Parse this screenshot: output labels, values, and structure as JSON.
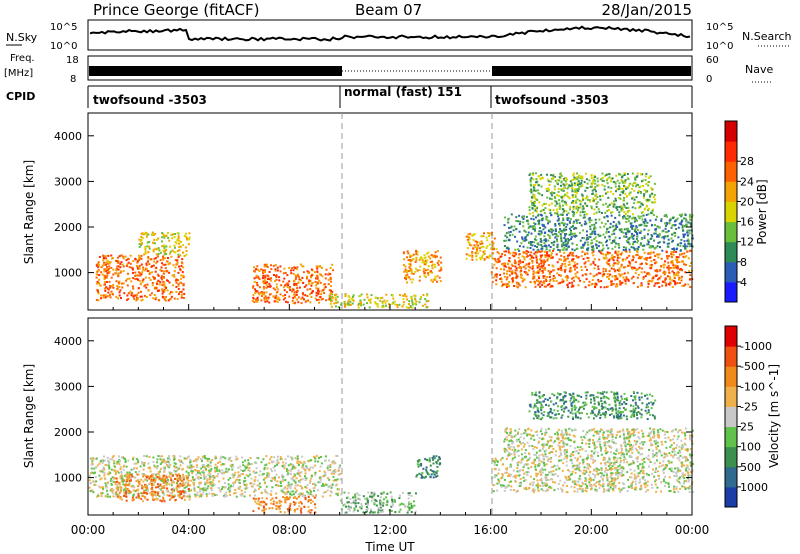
{
  "header": {
    "station": "Prince George (fitACF)",
    "beam": "Beam 07",
    "date": "28/Jan/2015"
  },
  "strip_labels": {
    "nsky": "N.Sky",
    "nsearch": "N.Search",
    "nsky_ticks": [
      "10^5",
      "10^0"
    ],
    "nsky_right_ticks": [
      "10^5",
      "10^0"
    ],
    "freq_label": "Freq.",
    "freq_unit": "[MHz]",
    "freq_ticks": [
      "18",
      "8"
    ],
    "nave_label": "Nave",
    "nave_ticks": [
      "60",
      "0"
    ],
    "cpid_label": "CPID"
  },
  "cpid_segments": [
    {
      "label": "twofsound -3503",
      "start": 0,
      "end": 10
    },
    {
      "label": "normal (fast) 151",
      "start": 10,
      "end": 16
    },
    {
      "label": "twofsound -3503",
      "start": 16,
      "end": 24
    }
  ],
  "chart_data": [
    {
      "type": "heatmap",
      "title": "",
      "xlabel": "",
      "ylabel": "Slant Range [km]",
      "xlim": [
        0,
        24
      ],
      "ylim": [
        180,
        4500
      ],
      "yticks": [
        1000,
        2000,
        3000,
        4000
      ],
      "colorbar": {
        "label": "Power [dB]",
        "ticks": [
          "4",
          "8",
          "12",
          "16",
          "20",
          "24",
          "28"
        ],
        "colors": [
          "#1a1aff",
          "#2b5db8",
          "#2e8b57",
          "#6abf3a",
          "#d9d400",
          "#f5a300",
          "#ff6000",
          "#ff2a00",
          "#d40000"
        ]
      },
      "echo_regions": [
        {
          "t0": 0.3,
          "t1": 3.8,
          "r0": 400,
          "r1": 1400,
          "level": 6
        },
        {
          "t0": 2.0,
          "t1": 4.0,
          "r0": 1400,
          "r1": 1900,
          "level": 4
        },
        {
          "t0": 6.5,
          "t1": 9.7,
          "r0": 350,
          "r1": 1200,
          "level": 6
        },
        {
          "t0": 9.5,
          "t1": 13.5,
          "r0": 250,
          "r1": 550,
          "level": 4
        },
        {
          "t0": 12.5,
          "t1": 14.0,
          "r0": 800,
          "r1": 1500,
          "level": 5
        },
        {
          "t0": 15.0,
          "t1": 16.2,
          "r0": 1300,
          "r1": 1900,
          "level": 5
        },
        {
          "t0": 16.0,
          "t1": 24.0,
          "r0": 700,
          "r1": 1500,
          "level": 6
        },
        {
          "t0": 16.5,
          "t1": 24.0,
          "r0": 1500,
          "r1": 2300,
          "level": 2
        },
        {
          "t0": 17.5,
          "t1": 22.5,
          "r0": 2300,
          "r1": 3200,
          "level": 3
        }
      ]
    },
    {
      "type": "heatmap",
      "title": "",
      "xlabel": "Time UT",
      "ylabel": "Slant Range [km]",
      "xlim": [
        0,
        24
      ],
      "ylim": [
        180,
        4500
      ],
      "yticks": [
        1000,
        2000,
        3000,
        4000
      ],
      "xticks": [
        "00:00",
        "04:00",
        "08:00",
        "12:00",
        "16:00",
        "20:00",
        "00:00"
      ],
      "colorbar": {
        "label": "Velocity [m s^-1]",
        "ticks": [
          "1000",
          "500",
          "100",
          "25",
          "-25",
          "-100",
          "-500",
          "-1000"
        ],
        "colors": [
          "#1a3da8",
          "#2e6b8f",
          "#3b8f4f",
          "#5fc24a",
          "#c8c8c8",
          "#f0b04a",
          "#f08a1a",
          "#f05010",
          "#e00000"
        ]
      },
      "echo_regions": [
        {
          "t0": 0.0,
          "t1": 10.0,
          "r0": 600,
          "r1": 1500,
          "level": 4
        },
        {
          "t0": 1.0,
          "t1": 4.0,
          "r0": 500,
          "r1": 1100,
          "level": 6
        },
        {
          "t0": 6.5,
          "t1": 9.0,
          "r0": 250,
          "r1": 600,
          "level": 6
        },
        {
          "t0": 10.0,
          "t1": 13.0,
          "r0": 250,
          "r1": 700,
          "level": 3
        },
        {
          "t0": 13.0,
          "t1": 14.0,
          "r0": 1000,
          "r1": 1500,
          "level": 2
        },
        {
          "t0": 16.0,
          "t1": 24.0,
          "r0": 700,
          "r1": 1500,
          "level": 4
        },
        {
          "t0": 16.5,
          "t1": 24.0,
          "r0": 1500,
          "r1": 2100,
          "level": 4
        },
        {
          "t0": 17.5,
          "t1": 22.5,
          "r0": 2300,
          "r1": 2900,
          "level": 2
        }
      ]
    }
  ]
}
